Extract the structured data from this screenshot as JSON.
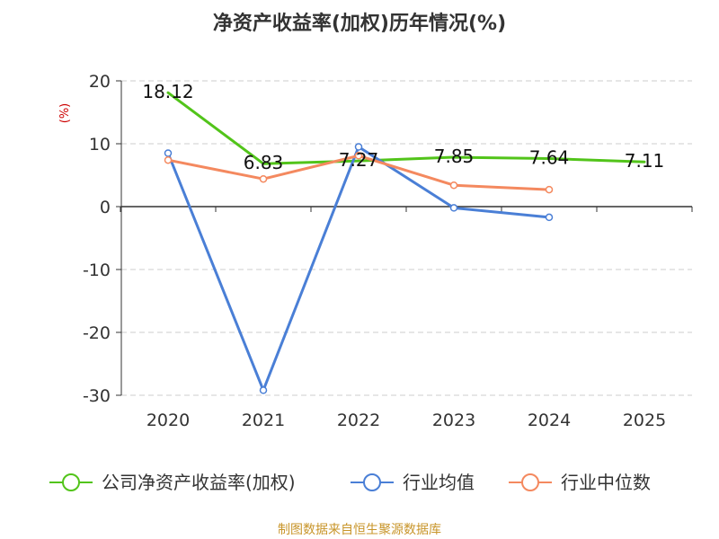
{
  "chart_data": {
    "type": "line",
    "title": "净资产收益率(加权)历年情况(%)",
    "ylabel": "(%)",
    "xlabel": "",
    "categories": [
      "2020",
      "2021",
      "2022",
      "2023",
      "2024",
      "2025"
    ],
    "ylim": [
      -30,
      20
    ],
    "yticks": [
      20,
      10,
      0,
      -10,
      -20,
      -30
    ],
    "grid": true,
    "legend_position": "bottom",
    "series": [
      {
        "name": "公司净资产收益率(加权)",
        "color": "#52c41a",
        "values": [
          18.12,
          6.83,
          7.27,
          7.85,
          7.64,
          7.11
        ],
        "labels": [
          "18.12",
          "6.83",
          "7.27",
          "7.85",
          "7.64",
          "7.11"
        ],
        "markers": false
      },
      {
        "name": "行业均值",
        "color": "#4a7fd6",
        "values": [
          8.5,
          -29.2,
          9.5,
          -0.2,
          -1.7,
          null
        ],
        "markers": true
      },
      {
        "name": "行业中位数",
        "color": "#f4895f",
        "values": [
          7.4,
          4.4,
          8.1,
          3.4,
          2.7,
          null
        ],
        "markers": true
      }
    ]
  },
  "footer": {
    "source": "制图数据来自恒生聚源数据库",
    "source_color": "#c8952a"
  }
}
